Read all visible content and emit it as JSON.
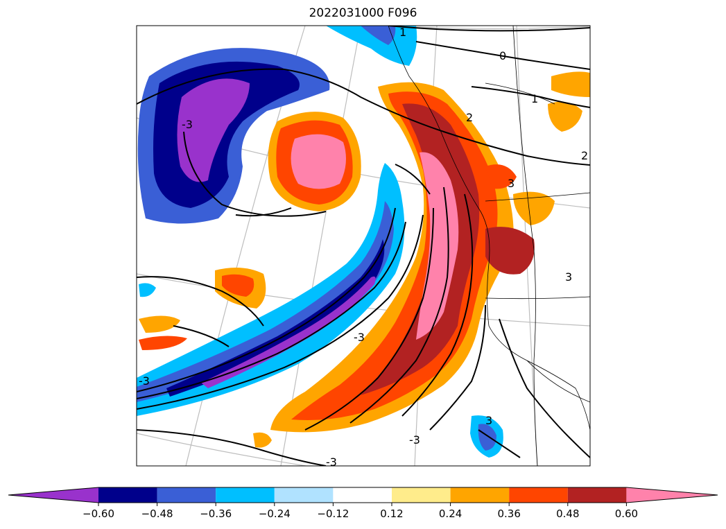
{
  "title": "2022031000 F096",
  "colors": {
    "neg_0": "#9932CC",
    "neg_1": "#00008B",
    "neg_2": "#3A5FD6",
    "neg_3": "#00BFFF",
    "neg_4": "#B0E2FF",
    "zero": "#FFFFFF",
    "pos_1": "#FFEC8B",
    "pos_2": "#FFA500",
    "pos_3": "#FF4500",
    "pos_4": "#B22222",
    "pos_5": "#FF82AB"
  },
  "colorbar": {
    "ticks": [
      "−0.60",
      "−0.48",
      "−0.36",
      "−0.24",
      "−0.12",
      "0.12",
      "0.24",
      "0.36",
      "0.48",
      "0.60"
    ],
    "bins": [
      "#9932CC",
      "#00008B",
      "#3A5FD6",
      "#00BFFF",
      "#B0E2FF",
      "#FFFFFF",
      "#FFEC8B",
      "#FFA500",
      "#FF4500",
      "#B22222",
      "#FF82AB"
    ]
  },
  "contour_labels": [
    "1",
    "0",
    "1",
    "2",
    "2",
    "3",
    "3",
    "-3",
    "-3",
    "-3",
    "-3",
    "3",
    "-3"
  ]
}
